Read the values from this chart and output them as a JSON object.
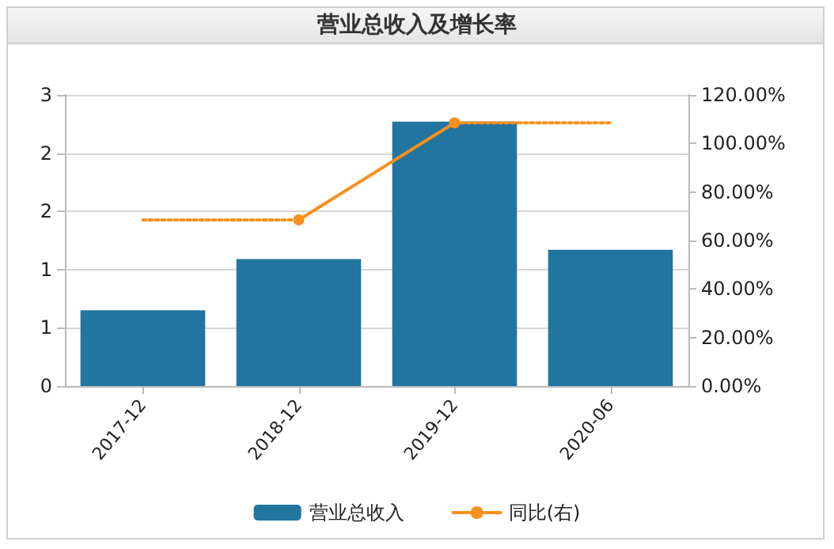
{
  "chart_data": {
    "type": "bar",
    "title": "营业总收入及增长率",
    "categories": [
      "2017-12",
      "2018-12",
      "2019-12",
      "2020-06"
    ],
    "series": [
      {
        "name": "营业总收入",
        "color": "#21759f",
        "values": [
          0.65,
          1.09,
          2.27,
          1.17
        ]
      },
      {
        "name": "同比(右)",
        "type": "line",
        "axis": "y2",
        "color": "#f7901e",
        "marker": "circle",
        "line_style": "solid",
        "values": [
          null,
          68.5,
          108.5,
          null
        ]
      },
      {
        "type": "line",
        "axis": "y2",
        "color": "#f7901e",
        "marker": "none",
        "line_style": "dotted",
        "values": [
          68.5,
          68.5,
          null,
          null
        ]
      },
      {
        "type": "line",
        "axis": "y2",
        "color": "#f7901e",
        "marker": "none",
        "line_style": "dotted",
        "values": [
          null,
          null,
          108.5,
          108.5
        ]
      }
    ],
    "ylim": [
      0,
      2.5
    ],
    "yticks": [
      0,
      {
        "value": 0.5,
        "label": "1"
      },
      {
        "value": 1,
        "label": "1"
      },
      {
        "value": 1.5,
        "label": "2"
      },
      {
        "value": 2,
        "label": "2"
      },
      {
        "value": 2.5,
        "label": "3"
      }
    ],
    "y2lim": [
      0,
      120
    ],
    "y2ticks": [
      {
        "value": 0,
        "label": "0.00%"
      },
      {
        "value": 20,
        "label": "20.00%"
      },
      {
        "value": 40,
        "label": "40.00%"
      },
      {
        "value": 60,
        "label": "60.00%"
      },
      {
        "value": 80,
        "label": "80.00%"
      },
      {
        "value": 100,
        "label": "100.00%"
      },
      {
        "value": 120,
        "label": "120.00%"
      }
    ],
    "grid": true,
    "legend": "bottom"
  }
}
